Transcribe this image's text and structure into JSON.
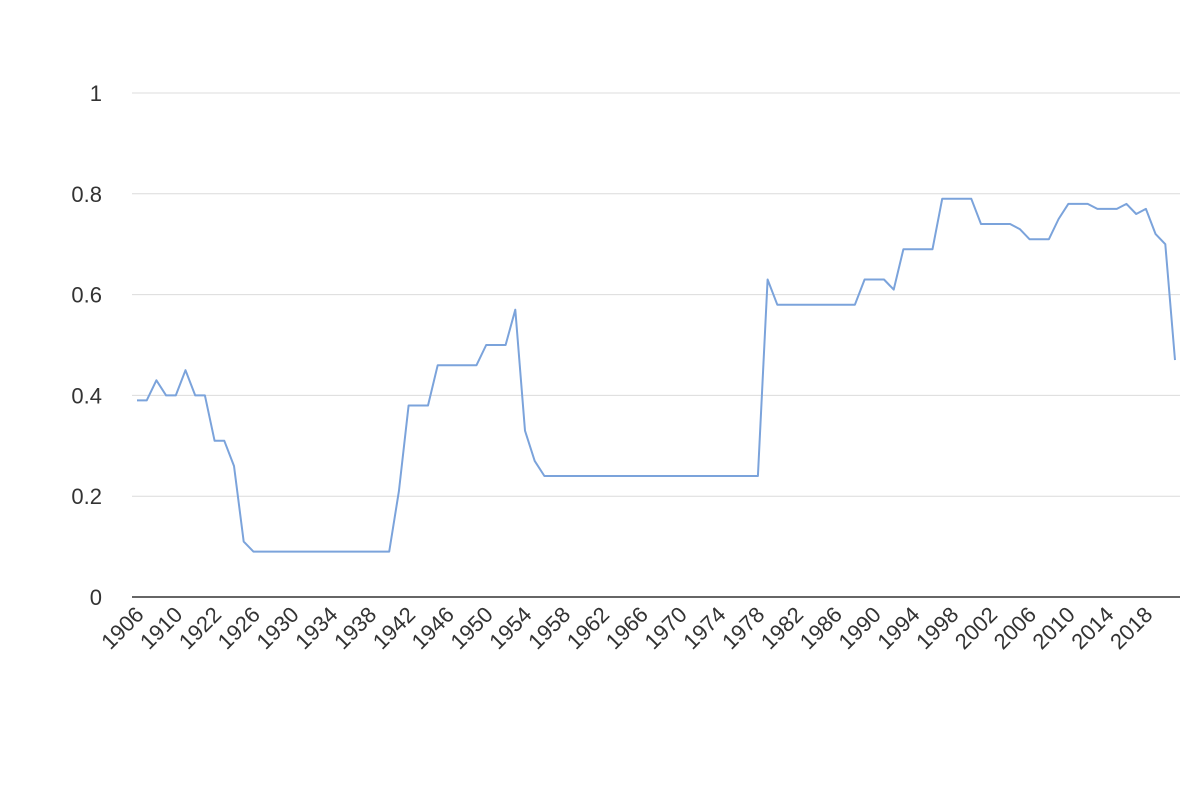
{
  "chart_data": {
    "type": "line",
    "categories": [
      "1906",
      null,
      null,
      null,
      "1910",
      null,
      null,
      null,
      "1922",
      null,
      null,
      null,
      "1926",
      null,
      null,
      null,
      "1930",
      null,
      null,
      null,
      "1934",
      null,
      null,
      null,
      "1938",
      null,
      null,
      null,
      "1942",
      null,
      null,
      null,
      "1946",
      null,
      null,
      null,
      "1950",
      null,
      null,
      null,
      "1954",
      null,
      null,
      null,
      "1958",
      null,
      null,
      null,
      "1962",
      null,
      null,
      null,
      "1966",
      null,
      null,
      null,
      "1970",
      null,
      null,
      null,
      "1974",
      null,
      null,
      null,
      "1978",
      null,
      null,
      null,
      "1982",
      null,
      null,
      null,
      "1986",
      null,
      null,
      null,
      "1990",
      null,
      null,
      null,
      "1994",
      null,
      null,
      null,
      "1998",
      null,
      null,
      null,
      "2002",
      null,
      null,
      null,
      "2006",
      null,
      null,
      null,
      "2010",
      null,
      null,
      null,
      "2014",
      null,
      null,
      null,
      "2018",
      null,
      null,
      null
    ],
    "values": [
      0.39,
      0.39,
      0.43,
      0.4,
      0.4,
      0.45,
      0.4,
      0.4,
      0.31,
      0.31,
      0.26,
      0.11,
      0.09,
      0.09,
      0.09,
      0.09,
      0.09,
      0.09,
      0.09,
      0.09,
      0.09,
      0.09,
      0.09,
      0.09,
      0.09,
      0.09,
      0.09,
      0.21,
      0.38,
      0.38,
      0.38,
      0.46,
      0.46,
      0.46,
      0.46,
      0.46,
      0.5,
      0.5,
      0.5,
      0.57,
      0.33,
      0.27,
      0.24,
      0.24,
      0.24,
      0.24,
      0.24,
      0.24,
      0.24,
      0.24,
      0.24,
      0.24,
      0.24,
      0.24,
      0.24,
      0.24,
      0.24,
      0.24,
      0.24,
      0.24,
      0.24,
      0.24,
      0.24,
      0.24,
      0.24,
      0.63,
      0.58,
      0.58,
      0.58,
      0.58,
      0.58,
      0.58,
      0.58,
      0.58,
      0.58,
      0.63,
      0.63,
      0.63,
      0.61,
      0.69,
      0.69,
      0.69,
      0.69,
      0.79,
      0.79,
      0.79,
      0.79,
      0.74,
      0.74,
      0.74,
      0.74,
      0.73,
      0.71,
      0.71,
      0.71,
      0.75,
      0.78,
      0.78,
      0.78,
      0.77,
      0.77,
      0.77,
      0.78,
      0.76,
      0.77,
      0.72,
      0.7,
      0.47
    ],
    "color": "#7ba3db",
    "ylim": [
      0,
      1
    ],
    "yticks": [
      0,
      0.2,
      0.4,
      0.6,
      0.8,
      1
    ],
    "grid": true
  }
}
